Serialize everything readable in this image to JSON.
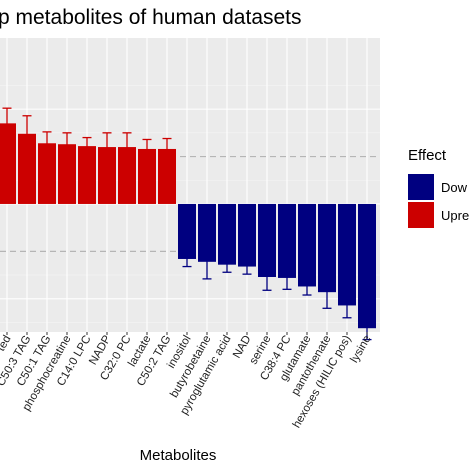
{
  "chart_data": {
    "type": "bar",
    "title": "p metabolites of human datasets",
    "xlabel": "Metabolites",
    "ylabel": "",
    "ylim": [
      -1.35,
      1.75
    ],
    "grid": true,
    "reference_lines": [
      0.5,
      -0.5
    ],
    "legend": {
      "title": "Effect",
      "placement": "right",
      "entries": [
        {
          "label": "Dow",
          "color": "#000080"
        },
        {
          "label": "Upre",
          "color": "#CC0000"
        }
      ]
    },
    "categories": [
      "ted",
      "C50:3 TAG",
      "C50:1 TAG",
      "phosphocreatine",
      "C14:0 LPC",
      "NADP",
      "C32:0 PC",
      "lactate",
      "C50:2 TAG",
      "inositol",
      "butyrobetaine",
      "pyroglutamic acid",
      "NAD",
      "serine",
      "C38:4 PC",
      "glutamate",
      "pantothenate",
      "hexoses (HILIC pos)",
      "lysine"
    ],
    "values": [
      0.85,
      0.74,
      0.64,
      0.63,
      0.61,
      0.6,
      0.6,
      0.58,
      0.58,
      -0.58,
      -0.61,
      -0.64,
      -0.66,
      -0.77,
      -0.78,
      -0.87,
      -0.93,
      -1.07,
      -1.31
    ],
    "errors": [
      0.16,
      0.19,
      0.12,
      0.12,
      0.09,
      0.15,
      0.15,
      0.1,
      0.11,
      0.08,
      0.18,
      0.08,
      0.08,
      0.14,
      0.12,
      0.09,
      0.17,
      0.13,
      0.12
    ],
    "effects": [
      "Upre",
      "Upre",
      "Upre",
      "Upre",
      "Upre",
      "Upre",
      "Upre",
      "Upre",
      "Upre",
      "Dow",
      "Dow",
      "Dow",
      "Dow",
      "Dow",
      "Dow",
      "Dow",
      "Dow",
      "Dow",
      "Dow"
    ]
  }
}
